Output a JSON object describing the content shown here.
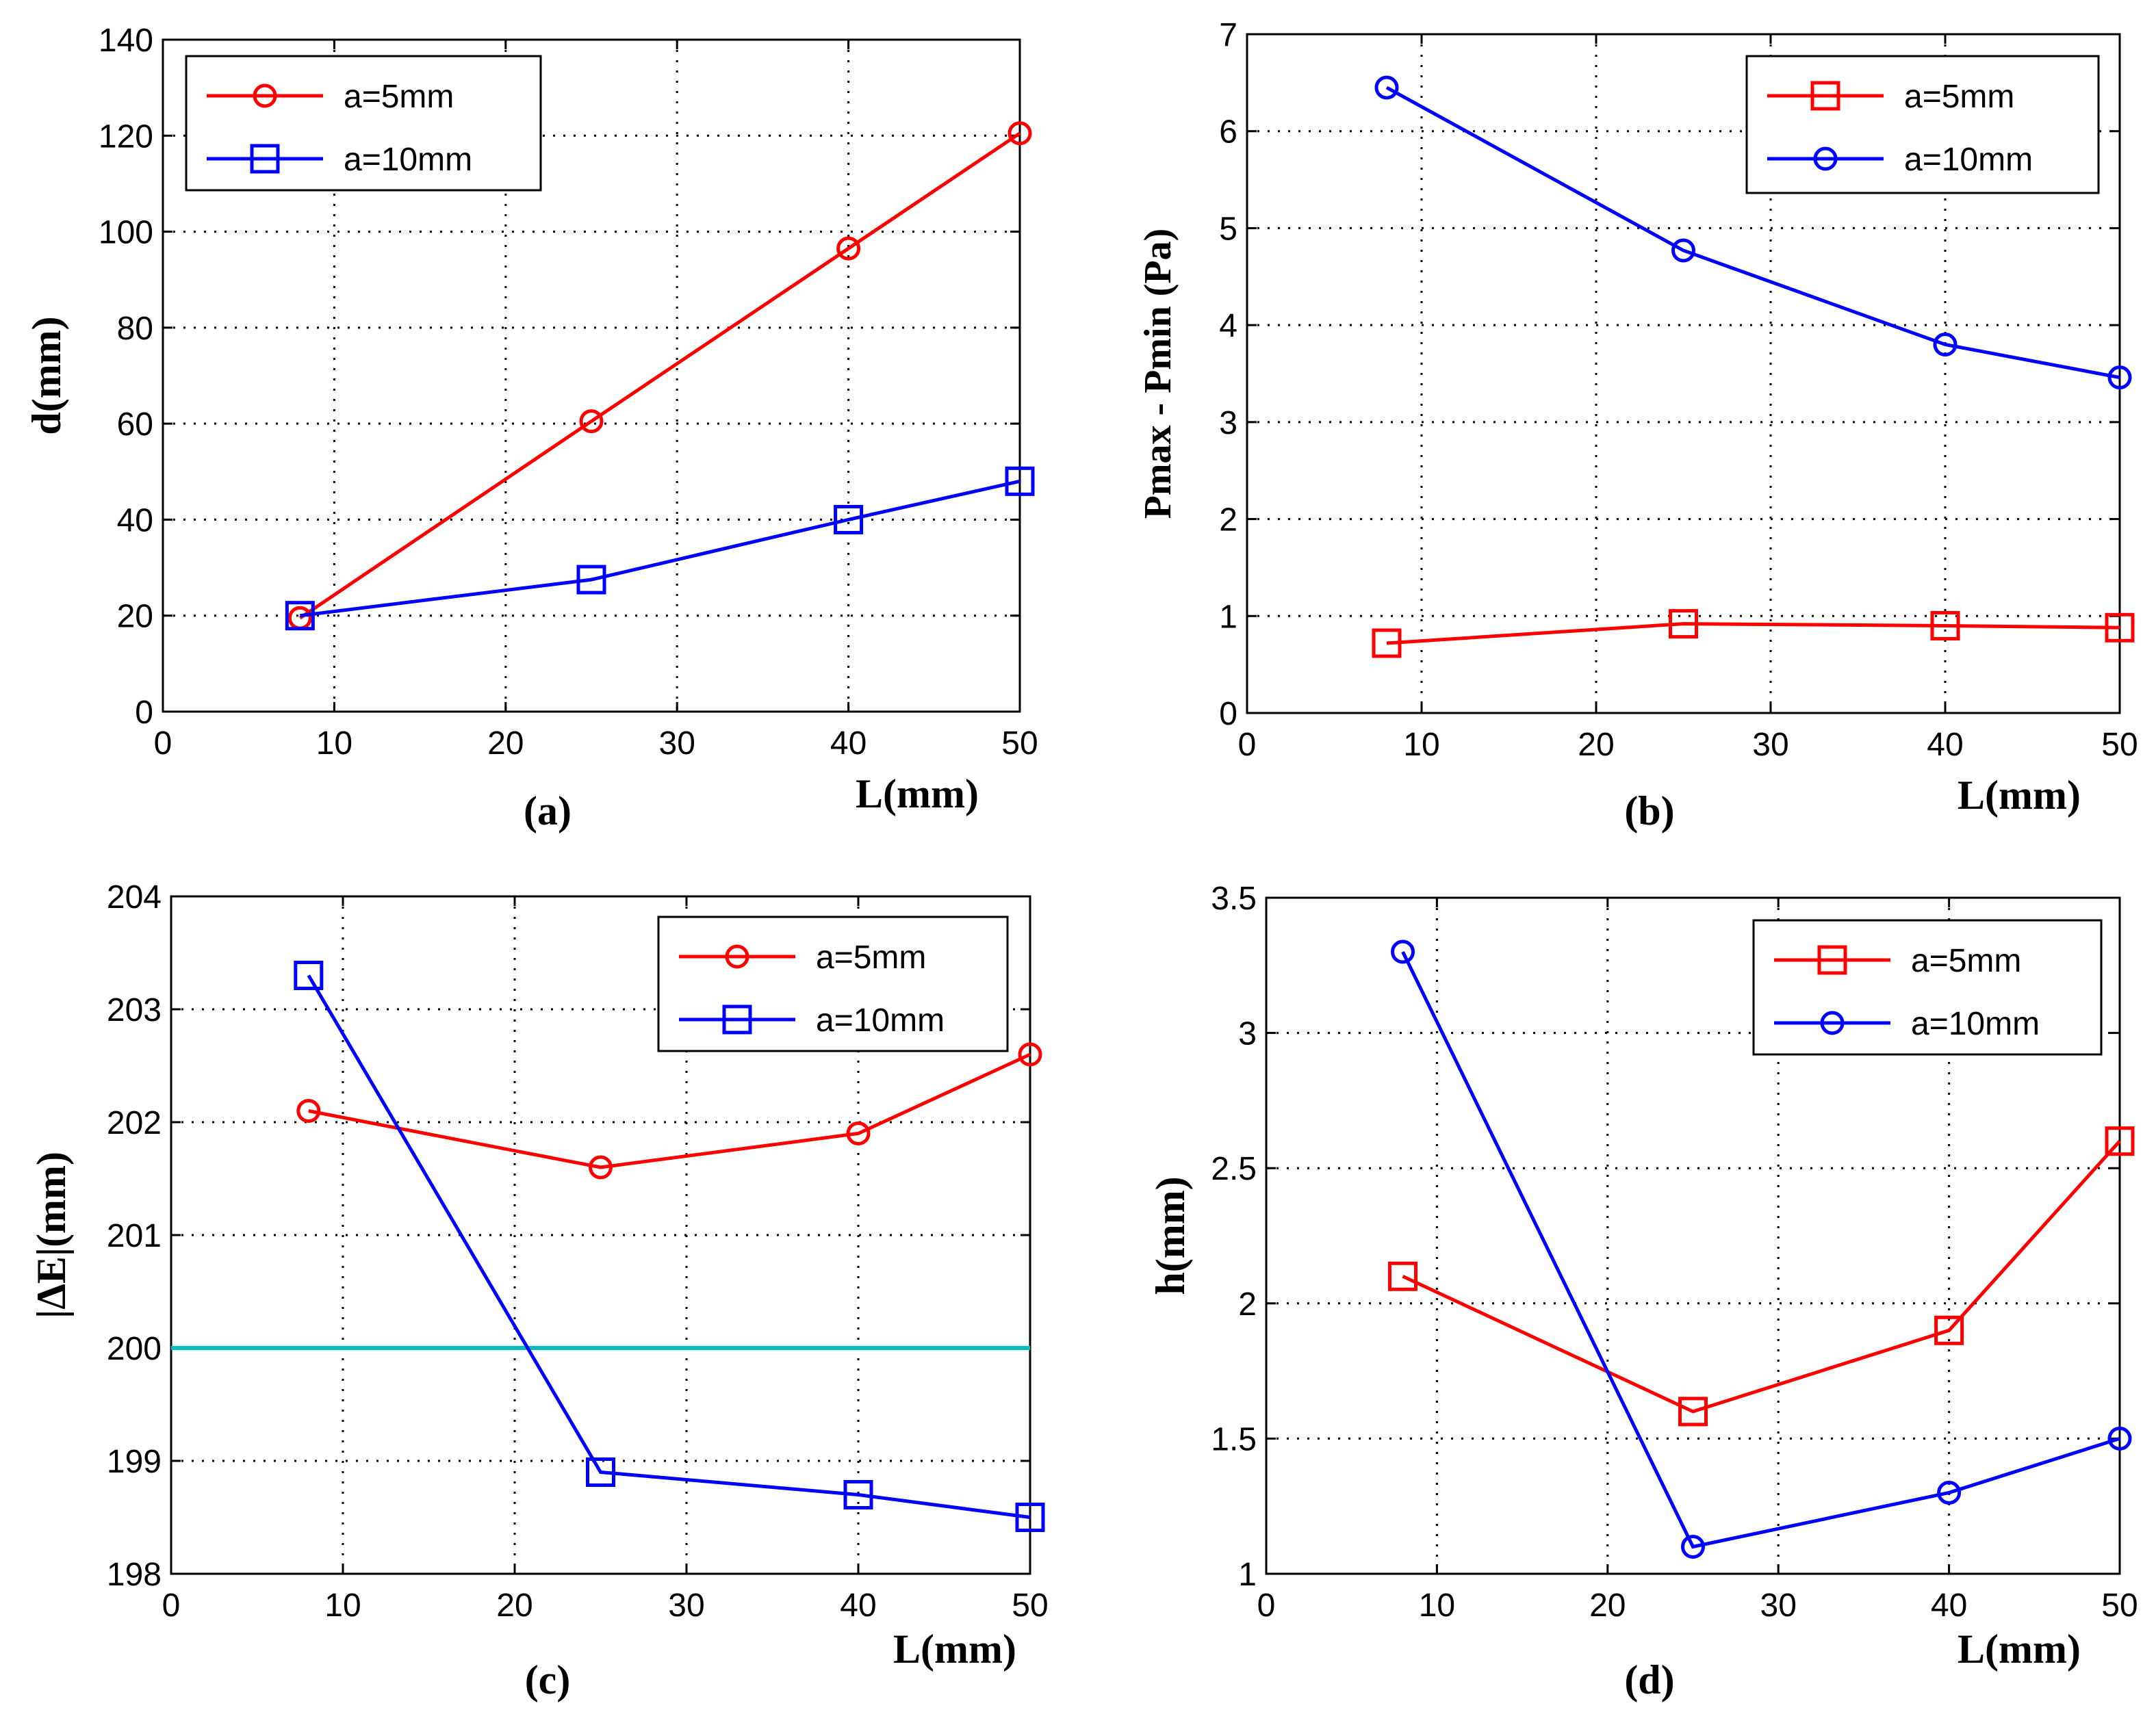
{
  "chart_data": [
    {
      "type": "line",
      "caption": "(a)",
      "xlabel": "L(mm)",
      "ylabel": "d(mm)",
      "xlim": [
        0,
        50
      ],
      "ylim": [
        0,
        140
      ],
      "xticks": [
        0,
        10,
        20,
        30,
        40,
        50
      ],
      "yticks": [
        0,
        20,
        40,
        60,
        80,
        100,
        120,
        140
      ],
      "grid": true,
      "legend_position": "top-left",
      "x": [
        8,
        25,
        40,
        50
      ],
      "series": [
        {
          "name": "a=5mm",
          "color": "#ff0000",
          "marker": "circle",
          "values": [
            19.5,
            60.5,
            96.5,
            120.5
          ]
        },
        {
          "name": "a=10mm",
          "color": "#0000ff",
          "marker": "square",
          "values": [
            20,
            27.5,
            40,
            48
          ]
        }
      ]
    },
    {
      "type": "line",
      "caption": "(b)",
      "xlabel": "L(mm)",
      "ylabel": "Pmax - Pmin (Pa)",
      "xlim": [
        0,
        50
      ],
      "ylim": [
        0,
        7
      ],
      "xticks": [
        0,
        10,
        20,
        30,
        40,
        50
      ],
      "yticks": [
        0,
        1,
        2,
        3,
        4,
        5,
        6,
        7
      ],
      "grid": true,
      "legend_position": "top-right",
      "x": [
        8,
        25,
        40,
        50
      ],
      "series": [
        {
          "name": "a=5mm",
          "color": "#ff0000",
          "marker": "square",
          "values": [
            0.72,
            0.92,
            0.9,
            0.88
          ]
        },
        {
          "name": "a=10mm",
          "color": "#0000ff",
          "marker": "circle",
          "values": [
            6.45,
            4.77,
            3.8,
            3.46
          ]
        }
      ]
    },
    {
      "type": "line",
      "caption": "(c)",
      "xlabel": "L(mm)",
      "ylabel": "|ΔE|(mm)",
      "xlim": [
        0,
        50
      ],
      "ylim": [
        198,
        204
      ],
      "xticks": [
        0,
        10,
        20,
        30,
        40,
        50
      ],
      "yticks": [
        198,
        199,
        200,
        201,
        202,
        203,
        204
      ],
      "grid": true,
      "legend_position": "top-right",
      "reference_line": {
        "y": 200,
        "color": "#00bfbf"
      },
      "x": [
        8,
        25,
        40,
        50
      ],
      "series": [
        {
          "name": "a=5mm",
          "color": "#ff0000",
          "marker": "circle",
          "values": [
            202.1,
            201.6,
            201.9,
            202.6
          ]
        },
        {
          "name": "a=10mm",
          "color": "#0000ff",
          "marker": "square",
          "values": [
            203.3,
            198.9,
            198.7,
            198.5
          ]
        }
      ]
    },
    {
      "type": "line",
      "caption": "(d)",
      "xlabel": "L(mm)",
      "ylabel": "h(mm)",
      "xlim": [
        0,
        50
      ],
      "ylim": [
        1,
        3.5
      ],
      "xticks": [
        0,
        10,
        20,
        30,
        40,
        50
      ],
      "yticks": [
        1,
        1.5,
        2,
        2.5,
        3,
        3.5
      ],
      "grid": true,
      "legend_position": "top-right",
      "x": [
        8,
        25,
        40,
        50
      ],
      "series": [
        {
          "name": "a=5mm",
          "color": "#ff0000",
          "marker": "square",
          "values": [
            2.1,
            1.6,
            1.9,
            2.6
          ]
        },
        {
          "name": "a=10mm",
          "color": "#0000ff",
          "marker": "circle",
          "values": [
            3.3,
            1.1,
            1.3,
            1.5
          ]
        }
      ]
    }
  ]
}
